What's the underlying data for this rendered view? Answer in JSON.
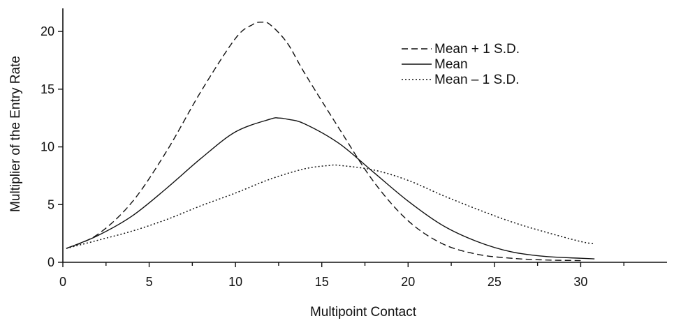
{
  "chart_data": {
    "type": "line",
    "title": "",
    "xlabel": "Multipoint Contact",
    "ylabel": "Multiplier of the Entry Rate",
    "xlim": [
      0,
      35
    ],
    "ylim": [
      0,
      22
    ],
    "x_ticks": [
      0,
      5,
      10,
      15,
      20,
      25,
      30
    ],
    "y_ticks": [
      0,
      5,
      10,
      15,
      20
    ],
    "grid": false,
    "legend_position": "top-right",
    "series": [
      {
        "name": "Mean + 1 S.D.",
        "style": "dashed",
        "x": [
          0.2,
          2,
          4,
          6,
          8,
          10,
          11,
          11.5,
          12,
          13,
          14,
          16,
          18,
          20,
          22,
          24,
          26,
          28,
          30
        ],
        "y": [
          1.2,
          2.4,
          5.2,
          9.6,
          14.8,
          19.4,
          20.6,
          20.8,
          20.6,
          19.0,
          16.4,
          11.6,
          7.0,
          3.6,
          1.6,
          0.7,
          0.35,
          0.2,
          0.15
        ]
      },
      {
        "name": "Mean",
        "style": "solid",
        "x": [
          0.2,
          2,
          4,
          6,
          8,
          10,
          12,
          12.5,
          13,
          14,
          16,
          18,
          20,
          22,
          24,
          26,
          28,
          30,
          30.8
        ],
        "y": [
          1.2,
          2.3,
          4.0,
          6.4,
          9.0,
          11.3,
          12.4,
          12.5,
          12.4,
          12.0,
          10.3,
          7.8,
          5.3,
          3.2,
          1.8,
          0.9,
          0.5,
          0.35,
          0.3
        ]
      },
      {
        "name": "Mean – 1 S.D.",
        "style": "dotted",
        "x": [
          0.2,
          2,
          4,
          6,
          8,
          10,
          12,
          14,
          15.5,
          16,
          18,
          20,
          22,
          24,
          26,
          28,
          30,
          30.8
        ],
        "y": [
          1.2,
          1.9,
          2.7,
          3.7,
          4.9,
          6.0,
          7.2,
          8.1,
          8.4,
          8.4,
          8.0,
          7.1,
          5.8,
          4.6,
          3.5,
          2.6,
          1.8,
          1.6
        ]
      }
    ]
  },
  "colors": {
    "ink": "#111111",
    "background": "#ffffff"
  }
}
